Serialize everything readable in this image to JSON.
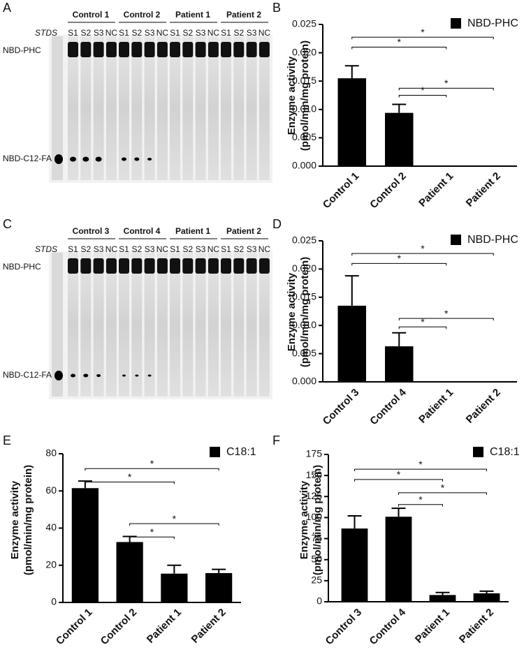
{
  "gels": [
    {
      "panel": "A",
      "standard": "STDS",
      "bands": [
        "NBD-PHC",
        "NBD-C12-FA"
      ],
      "groups": [
        {
          "name": "Control 1",
          "lanes": [
            "S1",
            "S2",
            "S3",
            "NC"
          ]
        },
        {
          "name": "Control 2",
          "lanes": [
            "S1",
            "S2",
            "S3",
            "NC"
          ]
        },
        {
          "name": "Patient 1",
          "lanes": [
            "S1",
            "S2",
            "S3",
            "NC"
          ]
        },
        {
          "name": "Patient 2",
          "lanes": [
            "S1",
            "S2",
            "S3",
            "NC"
          ]
        }
      ]
    },
    {
      "panel": "C",
      "standard": "STDS",
      "bands": [
        "NBD-PHC",
        "NBD-C12-FA"
      ],
      "groups": [
        {
          "name": "Control 3",
          "lanes": [
            "S1",
            "S2",
            "S3",
            "NC"
          ]
        },
        {
          "name": "Control 4",
          "lanes": [
            "S1",
            "S2",
            "S3",
            "NC"
          ]
        },
        {
          "name": "Patient 1",
          "lanes": [
            "S1",
            "S2",
            "S3",
            "NC"
          ]
        },
        {
          "name": "Patient 2",
          "lanes": [
            "S1",
            "S2",
            "S3",
            "NC"
          ]
        }
      ]
    }
  ],
  "chart_data": [
    {
      "type": "bar",
      "panel": "B",
      "y_label": [
        "Enzyme activity",
        "(pmol/min/mg protein)"
      ],
      "categories": [
        "Control 1",
        "Control 2",
        "Patient 1",
        "Patient 2"
      ],
      "series": [
        {
          "name": "NBD-PHC",
          "color": "#000000",
          "values": [
            0.0155,
            0.0094,
            0,
            0
          ],
          "errors": [
            0.0022,
            0.0015,
            null,
            null
          ]
        }
      ],
      "ylim": [
        0,
        0.025
      ],
      "yticks": [
        {
          "value": 0,
          "label": "0.000"
        },
        0.005,
        {
          "value": 0.01,
          "label": "0.010"
        },
        0.015,
        {
          "value": 0.02,
          "label": "0.020"
        },
        0.025
      ],
      "brackets": [
        {
          "from": "Control 1",
          "to": "Patient 2",
          "label": "*"
        },
        {
          "from": "Control 1",
          "to": "Patient 1",
          "label": "*"
        },
        {
          "from": "Control 2",
          "to": "Patient 2",
          "label": "*"
        },
        {
          "from": "Control 2",
          "to": "Patient 1",
          "label": "*"
        }
      ]
    },
    {
      "type": "bar",
      "panel": "D",
      "y_label": [
        "Enzyme activity",
        "(pmol/min/mg protein)"
      ],
      "categories": [
        "Control 3",
        "Control 4",
        "Patient 1",
        "Patient 2"
      ],
      "series": [
        {
          "name": "NBD-PHC",
          "color": "#000000",
          "values": [
            0.0135,
            0.0063,
            0,
            0
          ],
          "errors": [
            0.0053,
            0.0024,
            null,
            null
          ]
        }
      ],
      "ylim": [
        0,
        0.025
      ],
      "yticks": [
        {
          "value": 0,
          "label": "0.000"
        },
        0.005,
        {
          "value": 0.01,
          "label": "0.010"
        },
        0.015,
        {
          "value": 0.02,
          "label": "0.020"
        },
        0.025
      ],
      "brackets": [
        {
          "from": "Control 3",
          "to": "Patient 2",
          "label": "*"
        },
        {
          "from": "Control 3",
          "to": "Patient 1",
          "label": "*"
        },
        {
          "from": "Control 4",
          "to": "Patient 2",
          "label": "*"
        },
        {
          "from": "Control 4",
          "to": "Patient 1",
          "label": "*"
        }
      ]
    },
    {
      "type": "bar",
      "panel": "E",
      "y_label": [
        "Enzyme activity",
        "(pmol/min/mg protein)"
      ],
      "categories": [
        "Control 1",
        "Control 2",
        "Patient 1",
        "Patient 2"
      ],
      "series": [
        {
          "name": "C18:1",
          "color": "#000000",
          "values": [
            61.5,
            32.5,
            15.5,
            15.8
          ],
          "errors": [
            3.8,
            3,
            4.5,
            2
          ]
        }
      ],
      "ylim": [
        0,
        80
      ],
      "yticks": [
        0,
        20,
        40,
        60,
        80
      ],
      "brackets": [
        {
          "from": "Control 1",
          "to": "Patient 2",
          "label": "*"
        },
        {
          "from": "Control 1",
          "to": "Patient 1",
          "label": "*"
        },
        {
          "from": "Control 2",
          "to": "Patient 2",
          "label": "*"
        },
        {
          "from": "Control 2",
          "to": "Patient 1",
          "label": "*"
        }
      ]
    },
    {
      "type": "bar",
      "panel": "F",
      "y_label": [
        "Enzyme activity",
        "(pmol/min/mg protein)"
      ],
      "categories": [
        "Control 3",
        "Control 4",
        "Patient 1",
        "Patient 2"
      ],
      "series": [
        {
          "name": "C18:1",
          "color": "#000000",
          "values": [
            87,
            101,
            8,
            10
          ],
          "errors": [
            15,
            10,
            3,
            2.5
          ]
        }
      ],
      "ylim": [
        0,
        175
      ],
      "yticks": [
        0,
        25,
        50,
        75,
        100,
        125,
        150,
        175
      ],
      "brackets": [
        {
          "from": "Control 3",
          "to": "Patient 2",
          "label": "*"
        },
        {
          "from": "Control 3",
          "to": "Patient 1",
          "label": "*"
        },
        {
          "from": "Control 4",
          "to": "Patient 2",
          "label": "*"
        },
        {
          "from": "Control 4",
          "to": "Patient 1",
          "label": "*"
        }
      ]
    }
  ]
}
